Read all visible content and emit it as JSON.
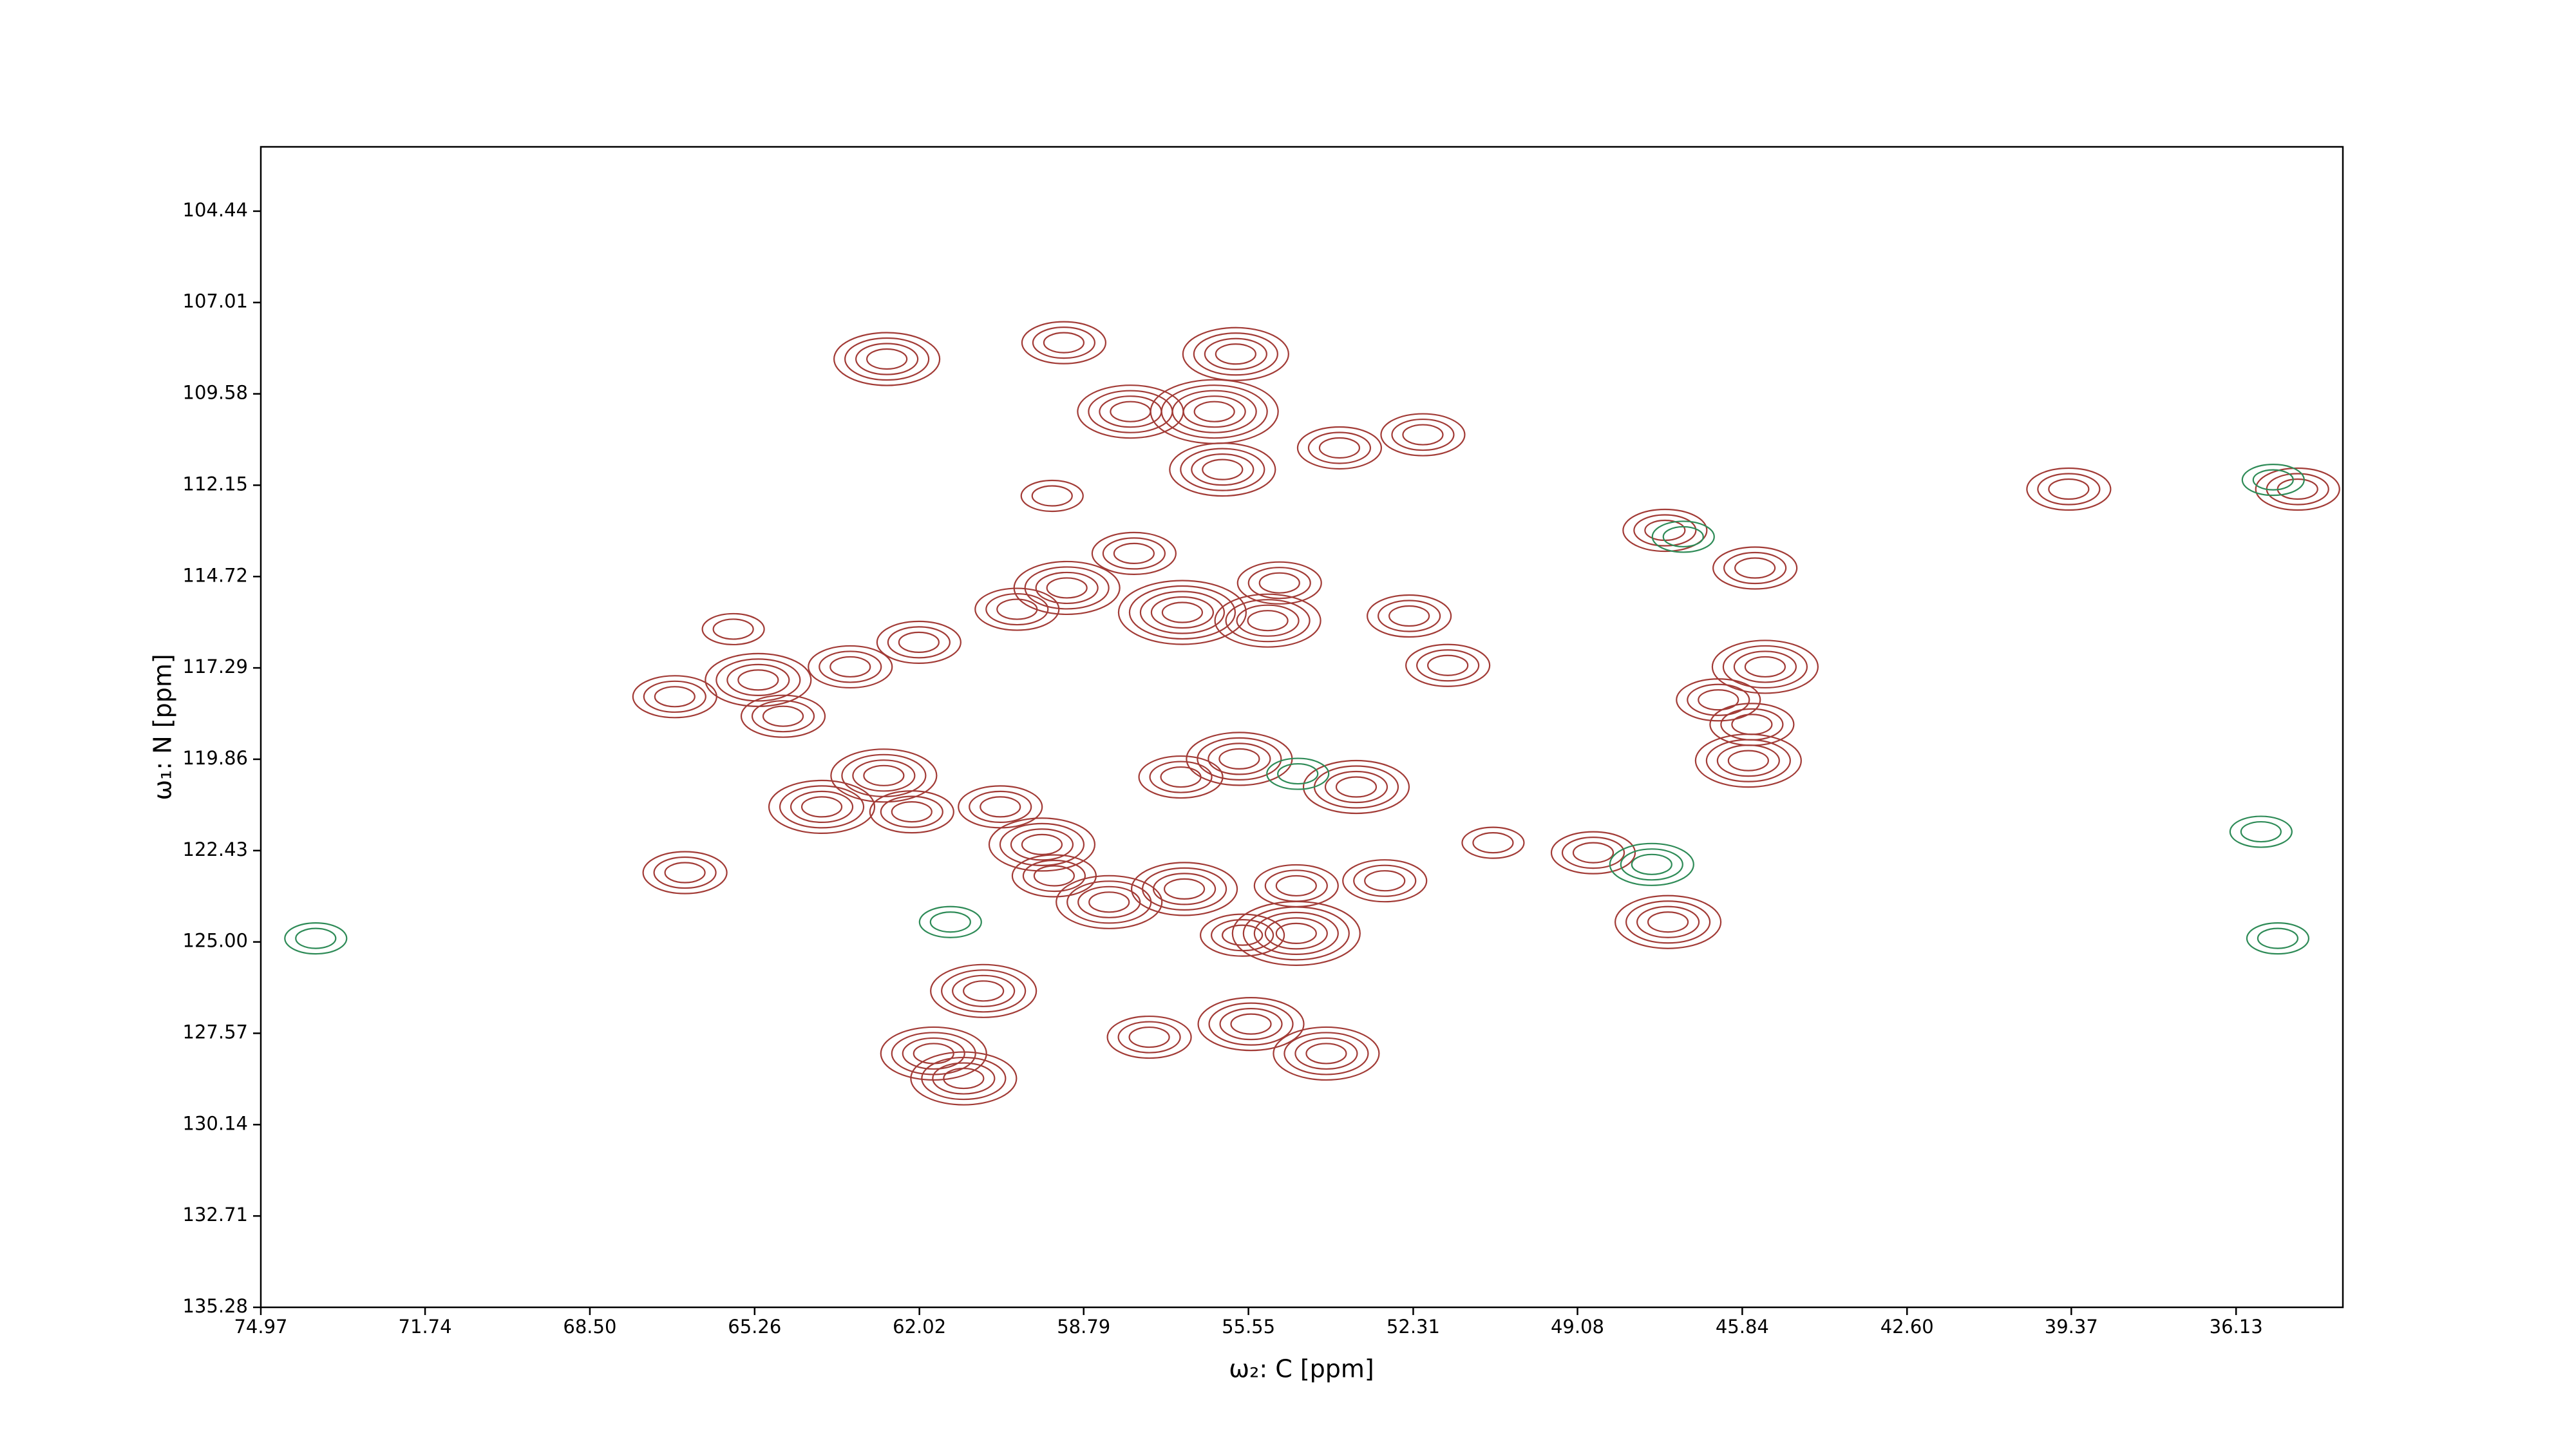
{
  "chart_data": {
    "type": "contour",
    "xlabel": "ω₂: C [ppm]",
    "ylabel": "ω₁: N [ppm]",
    "xlim": [
      74.97,
      34.03
    ],
    "ylim": [
      135.28,
      102.63
    ],
    "xticks": [
      74.97,
      71.74,
      {
        "value": 68.5,
        "label": "68.50"
      },
      65.26,
      62.02,
      58.79,
      55.55,
      52.31,
      49.08,
      45.84,
      {
        "value": 42.6,
        "label": "42.60"
      },
      39.37,
      36.13
    ],
    "yticks": [
      104.44,
      107.01,
      109.58,
      112.15,
      114.72,
      117.29,
      119.86,
      122.43,
      {
        "value": 125,
        "label": "125.00"
      },
      127.57,
      130.14,
      132.71,
      135.28
    ],
    "series": [
      {
        "color": "#a23b36",
        "x": [
          62.66,
          59.18,
          55.8,
          57.87,
          56.22,
          56.06,
          53.76,
          52.12,
          59.41,
          57.8,
          59.12,
          60.1,
          56.85,
          54.94,
          55.17,
          52.39,
          51.63,
          65.68,
          62.03,
          66.83,
          65.19,
          63.38,
          63.94,
          62.72,
          62.17,
          60.43,
          59.61,
          59.37,
          58.29,
          56.81,
          54.61,
          55.67,
          54.61,
          55.73,
          53.43,
          52.87,
          60.76,
          57.5,
          55.5,
          54.02,
          61.74,
          61.15,
          66.63,
          48.77,
          50.74,
          45.39,
          45.65,
          46.31,
          45.72,
          45.59,
          47.36,
          39.42,
          34.92,
          47.3,
          56.88,
          64.7
        ],
        "y": [
          108.6,
          108.14,
          108.46,
          110.08,
          110.08,
          111.71,
          111.1,
          110.73,
          112.45,
          114.07,
          115.04,
          115.64,
          115.73,
          114.9,
          115.96,
          115.83,
          117.22,
          116.2,
          116.57,
          118.1,
          117.63,
          117.26,
          121.2,
          120.32,
          121.34,
          121.2,
          122.26,
          123.14,
          123.88,
          123.51,
          124.76,
          124.81,
          123.42,
          119.85,
          120.64,
          123.28,
          126.38,
          127.68,
          127.31,
          128.14,
          128.14,
          128.84,
          123.05,
          122.49,
          122.21,
          117.26,
          118.88,
          118.19,
          119.9,
          114.48,
          113.42,
          112.26,
          112.26,
          124.44,
          120.36,
          118.65
        ],
        "levels": [
          4,
          3,
          4,
          4,
          5,
          4,
          3,
          3,
          2,
          3,
          4,
          3,
          5,
          3,
          4,
          3,
          3,
          2,
          3,
          3,
          4,
          3,
          4,
          4,
          3,
          3,
          4,
          3,
          4,
          4,
          5,
          3,
          3,
          4,
          4,
          3,
          4,
          3,
          4,
          4,
          4,
          4,
          3,
          3,
          2,
          4,
          3,
          3,
          4,
          3,
          3,
          3,
          3,
          4,
          3,
          3
        ]
      },
      {
        "color": "#2e8b57",
        "x": [
          47.62,
          61.41,
          35.64,
          35.31,
          73.89,
          35.4,
          54.58,
          47.0
        ],
        "y": [
          122.82,
          124.44,
          121.9,
          124.9,
          124.9,
          112.0,
          120.27,
          113.6
        ],
        "levels": [
          3,
          2,
          2,
          2,
          2,
          2,
          2,
          2
        ]
      }
    ]
  }
}
